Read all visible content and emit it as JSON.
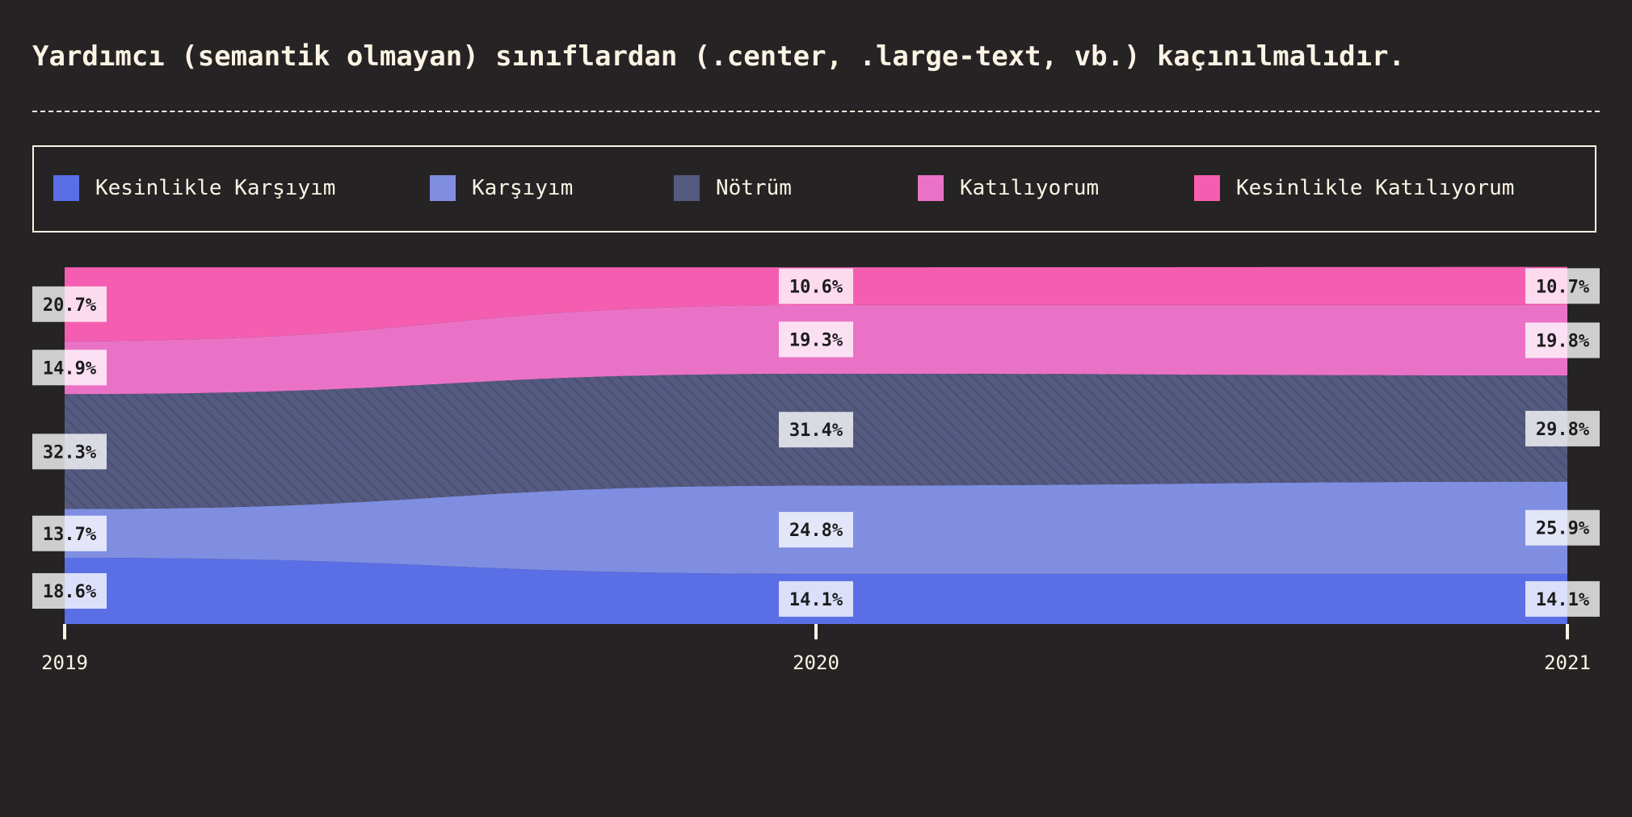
{
  "title": "Yardımcı (semantik olmayan) sınıflardan (.center, .large-text, vb.) kaçınılmalıdır.",
  "legend": {
    "position": "top",
    "items": [
      {
        "label": "Kesinlikle Karşıyım",
        "color": "#5a6ee6"
      },
      {
        "label": "Karşıyım",
        "color": "#7f8ee0"
      },
      {
        "label": "Nötrüm",
        "color": "#545a80"
      },
      {
        "label": "Katılıyorum",
        "color": "#ea72c6"
      },
      {
        "label": "Kesinlikle Katılıyorum",
        "color": "#f55eb0"
      }
    ]
  },
  "chart_data": {
    "type": "area",
    "stacked": true,
    "normalized": true,
    "x": [
      "2019",
      "2020",
      "2021"
    ],
    "ylim": [
      0,
      100
    ],
    "grid": false,
    "value_suffix": "%",
    "series": [
      {
        "name": "Kesinlikle Karşıyım",
        "color": "#5a6ee6",
        "values": [
          18.6,
          14.1,
          14.1
        ]
      },
      {
        "name": "Karşıyım",
        "color": "#7f8ee0",
        "values": [
          13.7,
          24.8,
          25.9
        ]
      },
      {
        "name": "Nötrüm",
        "color": "#545a80",
        "pattern": "diagonal-hatch",
        "values": [
          32.3,
          31.4,
          29.8
        ]
      },
      {
        "name": "Katılıyorum",
        "color": "#ea72c6",
        "values": [
          14.9,
          19.3,
          19.8
        ]
      },
      {
        "name": "Kesinlikle Katılıyorum",
        "color": "#f55eb0",
        "values": [
          20.7,
          10.6,
          10.7
        ]
      }
    ]
  }
}
